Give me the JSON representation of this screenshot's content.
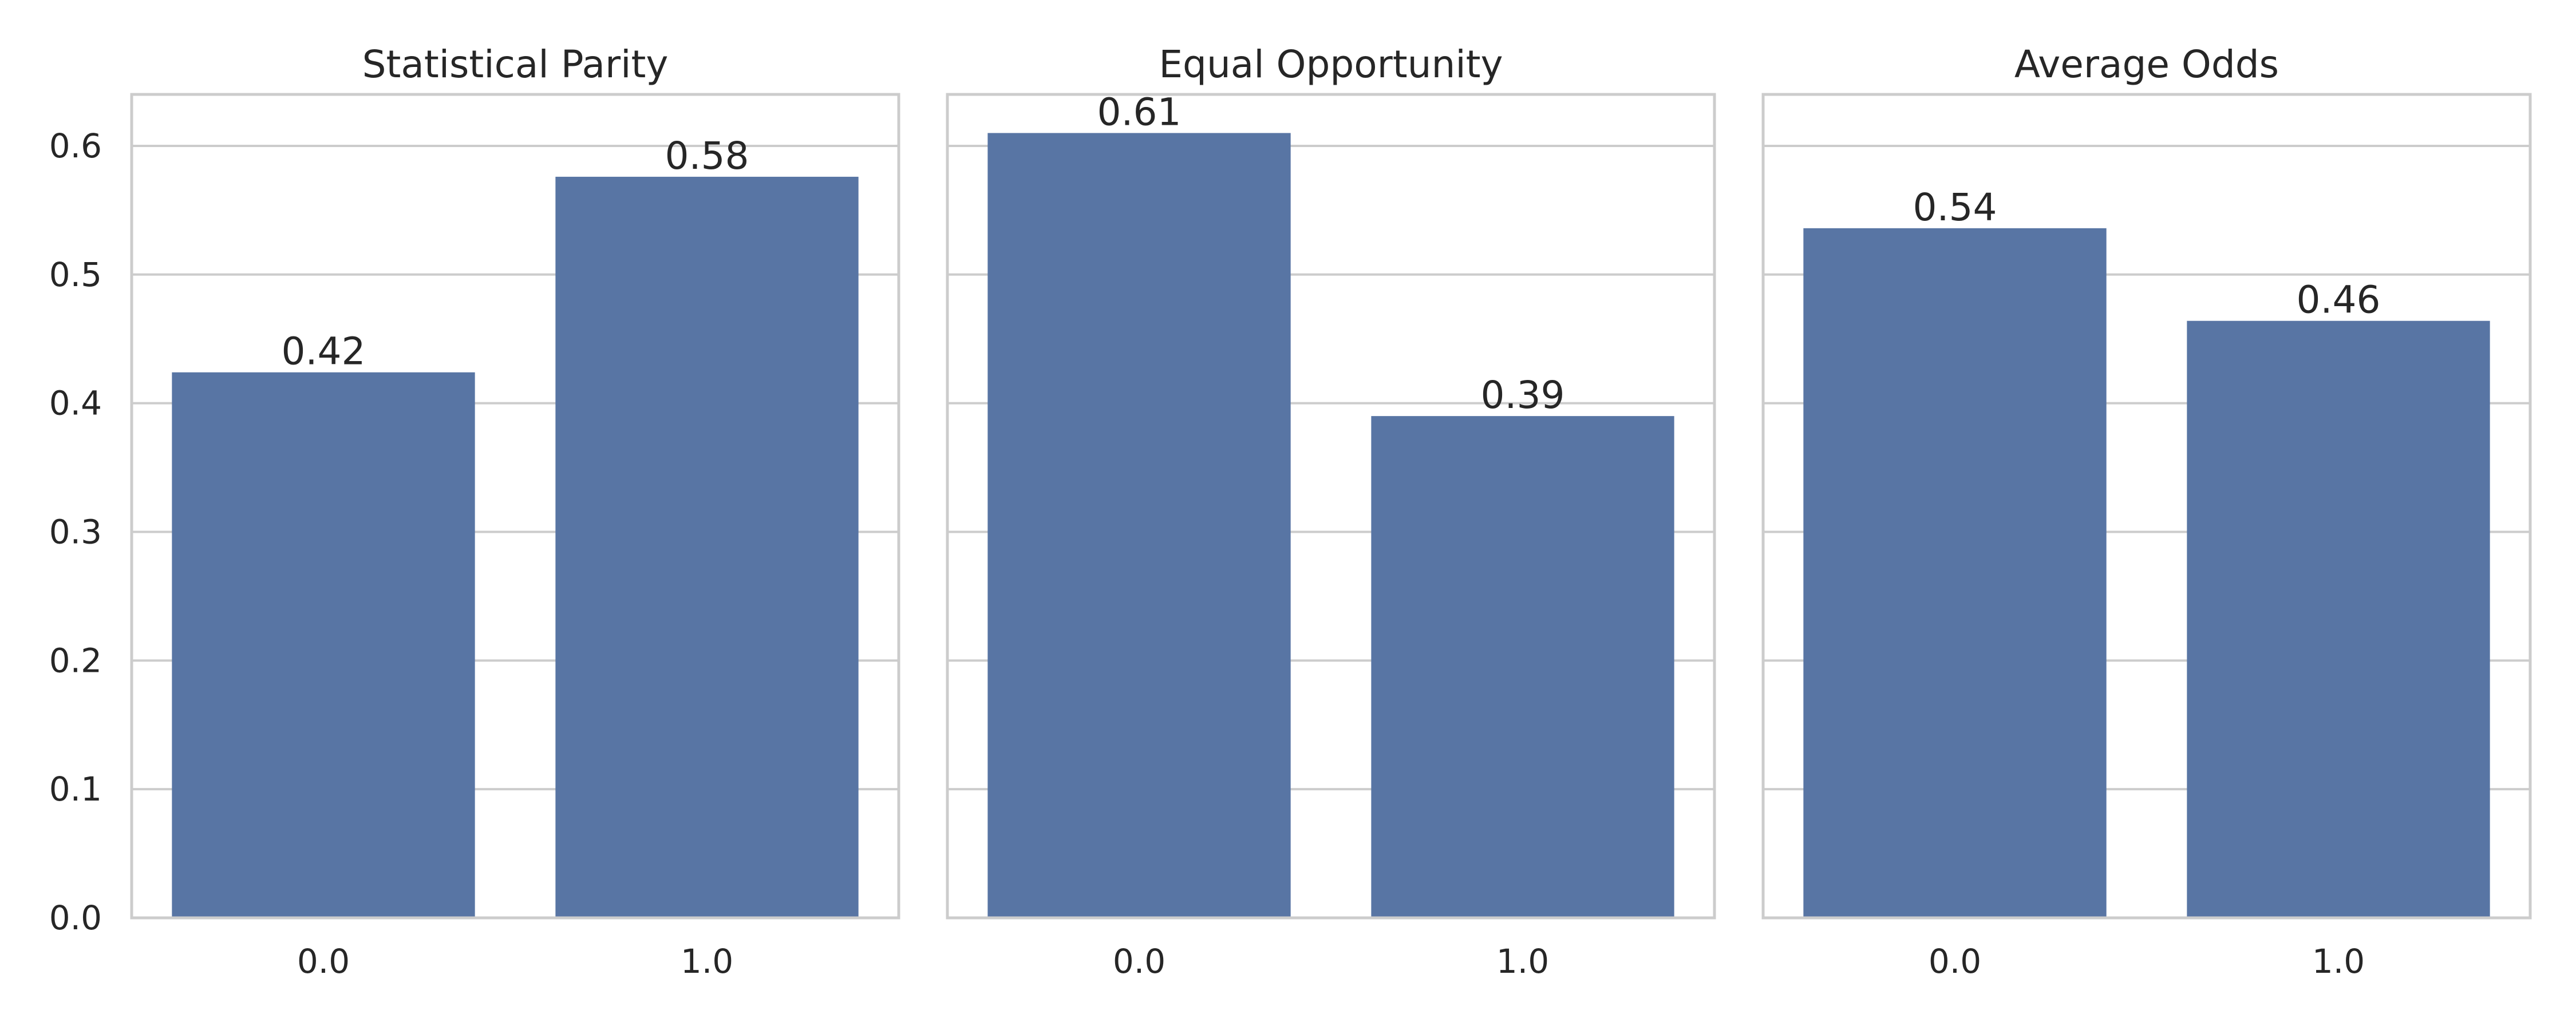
{
  "colors": {
    "bar": "#5875a4",
    "grid": "#cccccc",
    "frame": "#cccccc",
    "text": "#262626",
    "background": "#ffffff"
  },
  "chart_data": [
    {
      "type": "bar",
      "title": "Statistical Parity",
      "categories": [
        "0.0",
        "1.0"
      ],
      "values": [
        0.424,
        0.576
      ],
      "value_labels": [
        "0.42",
        "0.58"
      ],
      "ylim": [
        0,
        0.64
      ],
      "yticks": [
        "0.0",
        "0.1",
        "0.2",
        "0.3",
        "0.4",
        "0.5",
        "0.6"
      ],
      "grid": "horizontal",
      "xlabel": "",
      "ylabel": ""
    },
    {
      "type": "bar",
      "title": "Equal Opportunity",
      "categories": [
        "0.0",
        "1.0"
      ],
      "values": [
        0.61,
        0.39
      ],
      "value_labels": [
        "0.61",
        "0.39"
      ],
      "ylim": [
        0,
        0.64
      ],
      "yticks": [],
      "grid": "horizontal",
      "xlabel": "",
      "ylabel": ""
    },
    {
      "type": "bar",
      "title": "Average Odds",
      "categories": [
        "0.0",
        "1.0"
      ],
      "values": [
        0.536,
        0.464
      ],
      "value_labels": [
        "0.54",
        "0.46"
      ],
      "ylim": [
        0,
        0.64
      ],
      "yticks": [],
      "grid": "horizontal",
      "xlabel": "",
      "ylabel": ""
    }
  ]
}
